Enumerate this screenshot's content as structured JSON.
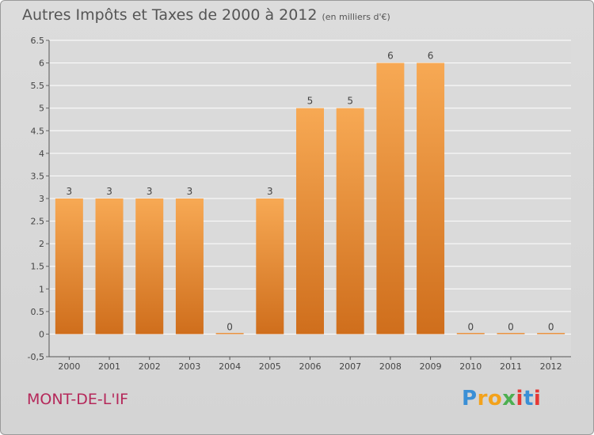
{
  "title": "Autres Impôts et Taxes de 2000 à 2012",
  "subtitle": "(en milliers d'€)",
  "commune": "MONT-DE-L'IF",
  "logo": "Proxiti",
  "colors": {
    "bar_light": "#f7a954",
    "bar_dark": "#cf6e1c",
    "background": "#d8d8d8",
    "commune_text": "#b5285a"
  },
  "chart_data": {
    "type": "bar",
    "title": "Autres Impôts et Taxes de 2000 à 2012",
    "subtitle": "(en milliers d'€)",
    "categories": [
      "2000",
      "2001",
      "2002",
      "2003",
      "2004",
      "2005",
      "2006",
      "2007",
      "2008",
      "2009",
      "2010",
      "2011",
      "2012"
    ],
    "values": [
      3,
      3,
      3,
      3,
      0,
      3,
      5,
      5,
      6,
      6,
      0,
      0,
      0
    ],
    "data_labels": [
      "3",
      "3",
      "3",
      "3",
      "0",
      "3",
      "5",
      "5",
      "6",
      "6",
      "0",
      "0",
      "0"
    ],
    "ylim": [
      -0.5,
      6.5
    ],
    "yticks": [
      "-0,5",
      "0",
      "0.5",
      "1",
      "1.5",
      "2",
      "2.5",
      "3",
      "3.5",
      "4",
      "4.5",
      "5",
      "5.5",
      "6",
      "6.5"
    ],
    "ytick_values": [
      -0.5,
      0,
      0.5,
      1,
      1.5,
      2,
      2.5,
      3,
      3.5,
      4,
      4.5,
      5,
      5.5,
      6,
      6.5
    ],
    "grid": true
  }
}
